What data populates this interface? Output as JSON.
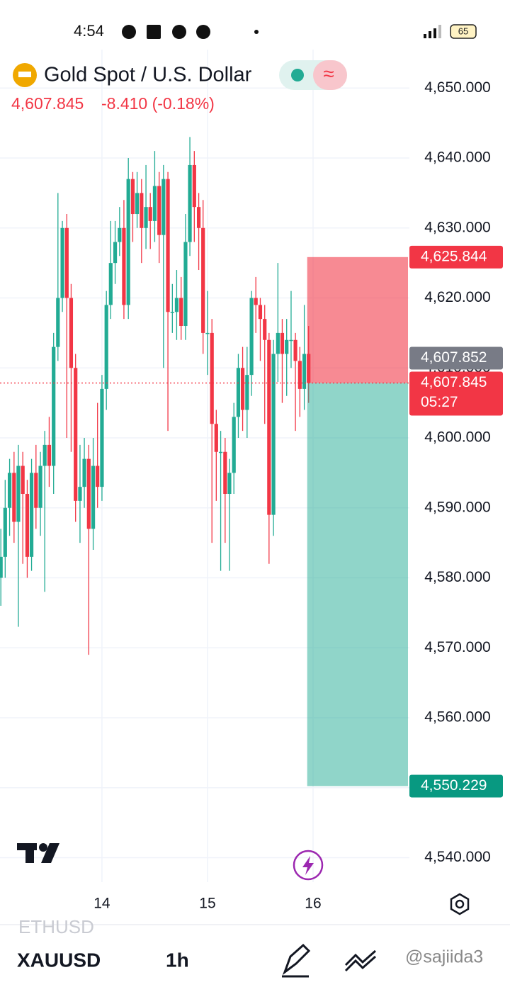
{
  "status_bar": {
    "time": "4:54",
    "battery": "65"
  },
  "chart_data": {
    "type": "candlestick",
    "title": "Gold Spot / U.S. Dollar",
    "last_price": "4,607.845",
    "change": "-8.410 (-0.18%)",
    "x": [
      13.042,
      13.083,
      13.125,
      13.167,
      13.208,
      13.25,
      13.292,
      13.333,
      13.375,
      13.417,
      13.458,
      13.5,
      13.542,
      13.583,
      13.625,
      13.667,
      13.708,
      13.75,
      13.792,
      13.833,
      13.875,
      13.917,
      13.958,
      14,
      14.042,
      14.083,
      14.125,
      14.167,
      14.208,
      14.25,
      14.292,
      14.333,
      14.375,
      14.417,
      14.458,
      14.5,
      14.542,
      14.583,
      14.625,
      14.667,
      14.708,
      14.75,
      14.792,
      14.833,
      14.875,
      14.917,
      14.958,
      15,
      15.042,
      15.083,
      15.125,
      15.167,
      15.208,
      15.25,
      15.292,
      15.333,
      15.375,
      15.417,
      15.458,
      15.5,
      15.542,
      15.583,
      15.625,
      15.667,
      15.708,
      15.75,
      15.792,
      15.833,
      15.875,
      15.917,
      15.958
    ],
    "open": [
      4580,
      4583,
      4590,
      4595,
      4588,
      4596,
      4592,
      4583,
      4595,
      4590,
      4596,
      4599,
      4596,
      4613,
      4620,
      4630,
      4620,
      4610,
      4591,
      4593,
      4597,
      4587,
      4596,
      4593,
      4607,
      4619,
      4625,
      4628,
      4630,
      4619,
      4637,
      4632,
      4635,
      4630,
      4633,
      4631,
      4636,
      4629,
      4637,
      4618,
      4618,
      4620,
      4616,
      4628,
      4639,
      4633,
      4630,
      4615,
      4615,
      4602,
      4598,
      4598,
      4592,
      4595,
      4603,
      4610,
      4604,
      4609,
      4620,
      4619,
      4617,
      4614,
      4589,
      4612,
      4615,
      4612,
      4614,
      4614,
      4611,
      4607,
      4612
    ],
    "high": [
      4587,
      4594,
      4597,
      4598,
      4599,
      4598,
      4594,
      4597,
      4599,
      4598,
      4601,
      4603,
      4615,
      4635,
      4631,
      4632,
      4622,
      4612,
      4599,
      4600,
      4599,
      4600,
      4605,
      4609,
      4621,
      4631,
      4631,
      4633,
      4634,
      4640,
      4638,
      4638,
      4637,
      4639,
      4635,
      4641,
      4638,
      4639,
      4638,
      4622,
      4624,
      4623,
      4632,
      4643,
      4641,
      4635,
      4634,
      4621,
      4617,
      4604,
      4601,
      4600,
      4597,
      4605,
      4612,
      4613,
      4613,
      4621,
      4623,
      4620,
      4619,
      4615,
      4614,
      4625,
      4617,
      4617,
      4621,
      4615,
      4613,
      4619,
      4616
    ],
    "low": [
      4576,
      4580,
      4586,
      4585,
      4573,
      4582,
      4580,
      4581,
      4587,
      4586,
      4578,
      4593,
      4592,
      4611,
      4618,
      4600,
      4598,
      4588,
      4585,
      4590,
      4569,
      4584,
      4590,
      4591,
      4604,
      4617,
      4622,
      4626,
      4617,
      4617,
      4628,
      4630,
      4625,
      4627,
      4627,
      4628,
      4625,
      4610,
      4601,
      4615,
      4614,
      4614,
      4614,
      4626,
      4628,
      4624,
      4612,
      4609,
      4585,
      4591,
      4581,
      4585,
      4581,
      4592,
      4600,
      4601,
      4600,
      4606,
      4615,
      4611,
      4602,
      4582,
      4586,
      4608,
      4605,
      4606,
      4610,
      4601,
      4603,
      4604,
      4605
    ],
    "close": [
      4583,
      4590,
      4595,
      4588,
      4596,
      4592,
      4583,
      4595,
      4590,
      4596,
      4599,
      4596,
      4613,
      4620,
      4630,
      4620,
      4610,
      4591,
      4593,
      4597,
      4587,
      4596,
      4593,
      4607,
      4619,
      4625,
      4628,
      4630,
      4619,
      4637,
      4632,
      4635,
      4630,
      4633,
      4631,
      4636,
      4629,
      4637,
      4618,
      4618,
      4620,
      4616,
      4628,
      4639,
      4633,
      4630,
      4615,
      4615,
      4602,
      4598,
      4598,
      4592,
      4595,
      4603,
      4610,
      4604,
      4609,
      4620,
      4619,
      4617,
      4614,
      4589,
      4612,
      4615,
      4612,
      4614,
      4614,
      4611,
      4607,
      4612,
      4607.845
    ],
    "up_color": "#22ab94",
    "down_color": "#f23645",
    "xlim": [
      13.034,
      16.913
    ],
    "xticks": [
      14,
      15,
      16
    ],
    "ylim": [
      4536.5,
      4655.5
    ],
    "yticks": [
      {
        "value": 4540,
        "label": "4,540.000"
      },
      {
        "value": 4550,
        "label": "4,550.000"
      },
      {
        "value": 4560,
        "label": "4,560.000"
      },
      {
        "value": 4570,
        "label": "4,570.000"
      },
      {
        "value": 4580,
        "label": "4,580.000"
      },
      {
        "value": 4590,
        "label": "4,590.000"
      },
      {
        "value": 4600,
        "label": "4,600.000"
      },
      {
        "value": 4610,
        "label": "4,610.000"
      },
      {
        "value": 4620,
        "label": "4,620.000"
      },
      {
        "value": 4630,
        "label": "4,630.000"
      },
      {
        "value": 4640,
        "label": "4,640.000"
      },
      {
        "value": 4650,
        "label": "4,650.000"
      }
    ],
    "grid": true,
    "price_labels": [
      {
        "value": 4625.844,
        "label": "4,625.844",
        "color": "#f23645"
      },
      {
        "value": 4607.852,
        "label": "4,607.852",
        "color": "#787b86"
      },
      {
        "value": 4607.845,
        "label": "4,607.845",
        "countdown": "05:27",
        "color": "#f23645"
      },
      {
        "value": 4550.229,
        "label": "4,550.229",
        "color": "#089981"
      }
    ]
  },
  "toolbar": {
    "prev_symbol": "ETHUSD",
    "symbol": "XAUUSD",
    "interval": "1h"
  },
  "watermark": "@sajiida3"
}
